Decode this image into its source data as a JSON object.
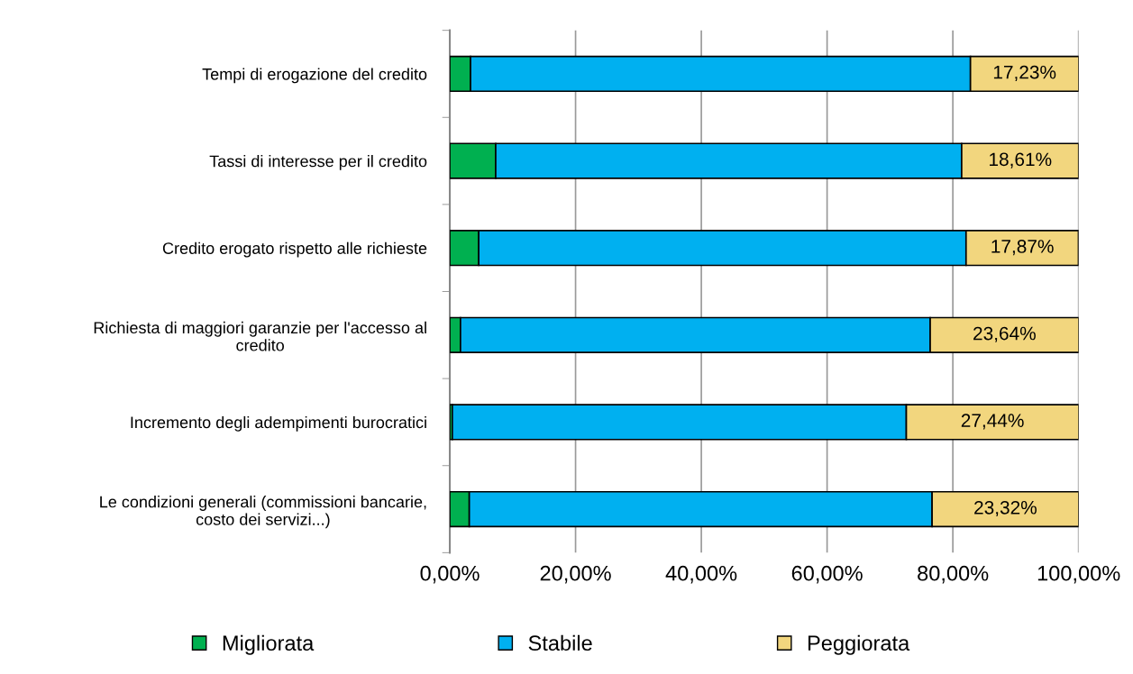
{
  "chart_data": {
    "type": "bar",
    "orientation": "horizontal",
    "stacked": true,
    "categories": [
      "Tempi di erogazione del credito",
      "Tassi di interesse per il credito",
      "Credito erogato rispetto alle richieste",
      "Richiesta di maggiori garanzie per l'accesso al\ncredito",
      "Incremento degli adempimenti burocratici",
      "Le condizioni generali (commissioni bancarie,\ncosto dei servizi...)"
    ],
    "series": [
      {
        "name": "Migliorata",
        "color": "#00b050",
        "values": [
          3.3,
          7.3,
          4.6,
          1.7,
          0.4,
          3.1
        ]
      },
      {
        "name": "Stabile",
        "color": "#00b0f0",
        "values": [
          79.5,
          74.1,
          77.5,
          74.7,
          72.2,
          73.6
        ]
      },
      {
        "name": "Peggiorata",
        "color": "#f2d67e",
        "values": [
          17.23,
          18.61,
          17.87,
          23.64,
          27.44,
          23.32
        ],
        "value_labels": [
          "17,23%",
          "18,61%",
          "17,87%",
          "23,64%",
          "27,44%",
          "23,32%"
        ]
      }
    ],
    "xlim": [
      0,
      100
    ],
    "xticks": [
      {
        "value": 0,
        "label": "0,00%"
      },
      {
        "value": 20,
        "label": "20,00%"
      },
      {
        "value": 40,
        "label": "40,00%"
      },
      {
        "value": 60,
        "label": "60,00%"
      },
      {
        "value": 80,
        "label": "80,00%"
      },
      {
        "value": 100,
        "label": "100,00%"
      }
    ],
    "grid": "x",
    "legend": "bottom"
  }
}
